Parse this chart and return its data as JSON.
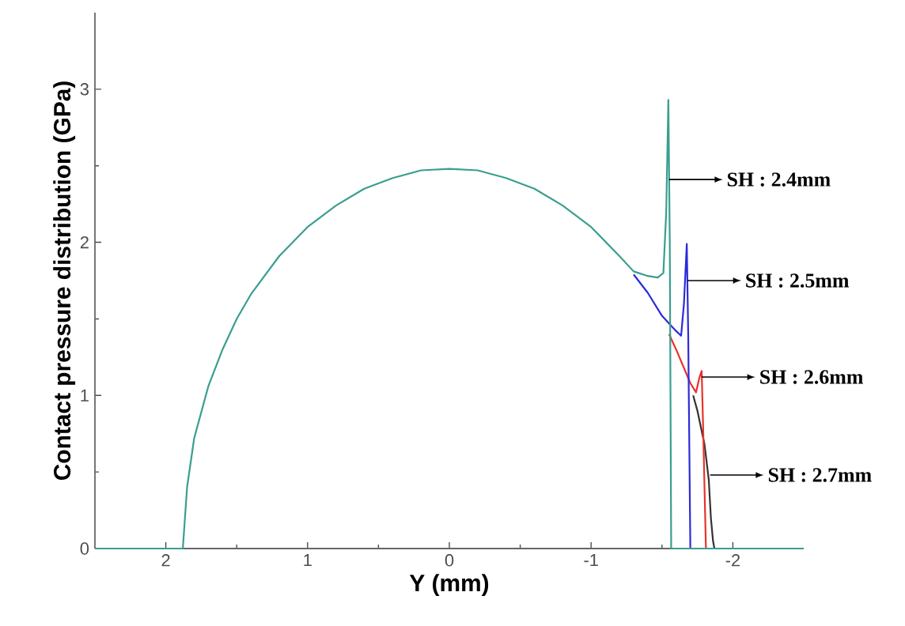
{
  "chart_data": {
    "type": "line",
    "xlabel": "Y (mm)",
    "ylabel": "Contact pressure distribution (GPa)",
    "xlim": [
      2.5,
      -2.5
    ],
    "ylim": [
      0,
      3.5
    ],
    "xticks": [
      2,
      1,
      0,
      -1,
      -2
    ],
    "yticks": [
      0,
      1,
      2,
      3
    ],
    "grid": false,
    "marker": "none",
    "line_style": "solid",
    "series": [
      {
        "color": "#333333",
        "x": [
          -1.72,
          -1.75,
          -1.8,
          -1.83,
          -1.845,
          -1.86,
          -1.87
        ],
        "values": [
          1.0,
          0.9,
          0.68,
          0.45,
          0.2,
          0.05,
          0
        ]
      },
      {
        "color": "#e8322b",
        "x": [
          -1.55,
          -1.6,
          -1.7,
          -1.74,
          -1.765,
          -1.78,
          -1.79,
          -1.81
        ],
        "values": [
          1.4,
          1.3,
          1.08,
          1.02,
          1.12,
          1.16,
          0.8,
          0
        ]
      },
      {
        "color": "#2b2bd9",
        "x": [
          -1.3,
          -1.4,
          -1.5,
          -1.6,
          -1.635,
          -1.655,
          -1.675,
          -1.685,
          -1.7
        ],
        "values": [
          1.79,
          1.67,
          1.52,
          1.42,
          1.39,
          1.6,
          1.99,
          1.4,
          0
        ]
      },
      {
        "color": "#3a9e8f",
        "x": [
          2.5,
          1.88,
          1.85,
          1.8,
          1.7,
          1.6,
          1.5,
          1.4,
          1.2,
          1.0,
          0.8,
          0.6,
          0.4,
          0.2,
          0,
          -0.2,
          -0.4,
          -0.6,
          -0.8,
          -1.0,
          -1.2,
          -1.3,
          -1.4,
          -1.47,
          -1.51,
          -1.53,
          -1.545,
          -1.555,
          -1.565,
          -2.5
        ],
        "values": [
          0,
          0,
          0.4,
          0.72,
          1.06,
          1.3,
          1.5,
          1.66,
          1.91,
          2.1,
          2.24,
          2.35,
          2.42,
          2.47,
          2.48,
          2.47,
          2.42,
          2.35,
          2.24,
          2.1,
          1.91,
          1.81,
          1.78,
          1.77,
          1.8,
          2.2,
          2.93,
          2.0,
          0,
          0
        ]
      }
    ],
    "annotations": [
      {
        "text": "SH : 2.4mm",
        "x": -1.55,
        "y": 2.41
      },
      {
        "text": "SH : 2.5mm",
        "x": -1.68,
        "y": 1.75
      },
      {
        "text": "SH : 2.6mm",
        "x": -1.78,
        "y": 1.12
      },
      {
        "text": "SH : 2.7mm",
        "x": -1.84,
        "y": 0.48
      }
    ]
  }
}
